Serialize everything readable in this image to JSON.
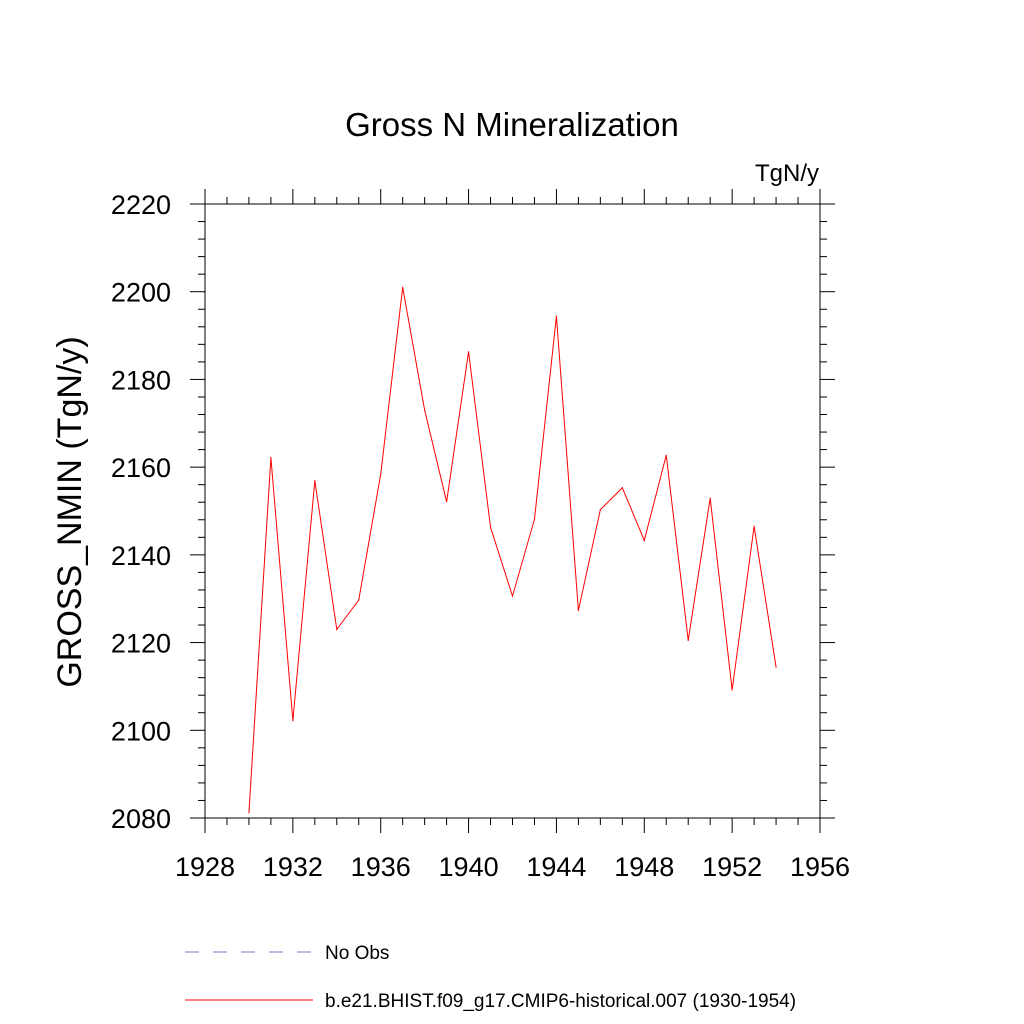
{
  "chart_data": {
    "type": "line",
    "title": "Gross N Mineralization",
    "units_label": "TgN/y",
    "ylabel": "GROSS_NMIN  (TgN/y)",
    "xlabel": "",
    "xlim": [
      1928,
      1956
    ],
    "ylim": [
      2080,
      2220
    ],
    "xticks": [
      1928,
      1932,
      1936,
      1940,
      1944,
      1948,
      1952,
      1956
    ],
    "yticks": [
      2080,
      2100,
      2120,
      2140,
      2160,
      2180,
      2200,
      2220
    ],
    "grid": false,
    "series": [
      {
        "name": "b.e21.BHIST.f09_g17.CMIP6-historical.007 (1930-1954)",
        "color": "#ff0000",
        "x": [
          1930,
          1931,
          1932,
          1933,
          1934,
          1935,
          1936,
          1937,
          1938,
          1939,
          1940,
          1941,
          1942,
          1943,
          1944,
          1945,
          1946,
          1947,
          1948,
          1949,
          1950,
          1951,
          1952,
          1953,
          1954
        ],
        "y": [
          2081.2,
          2162.2,
          2102.2,
          2156.9,
          2123.0,
          2129.7,
          2158.4,
          2201.0,
          2173.0,
          2152.1,
          2186.3,
          2146.3,
          2130.6,
          2148.1,
          2194.4,
          2127.3,
          2150.3,
          2155.3,
          2143.3,
          2162.7,
          2120.5,
          2152.9,
          2109.2,
          2146.5,
          2114.4
        ]
      }
    ],
    "legend": {
      "placement": "bottom",
      "entries": [
        {
          "label": "No Obs",
          "color": "#7777cc",
          "style": "dashed"
        },
        {
          "label": "b.e21.BHIST.f09_g17.CMIP6-historical.007 (1930-1954)",
          "color": "#ff0000",
          "style": "solid"
        }
      ]
    }
  }
}
